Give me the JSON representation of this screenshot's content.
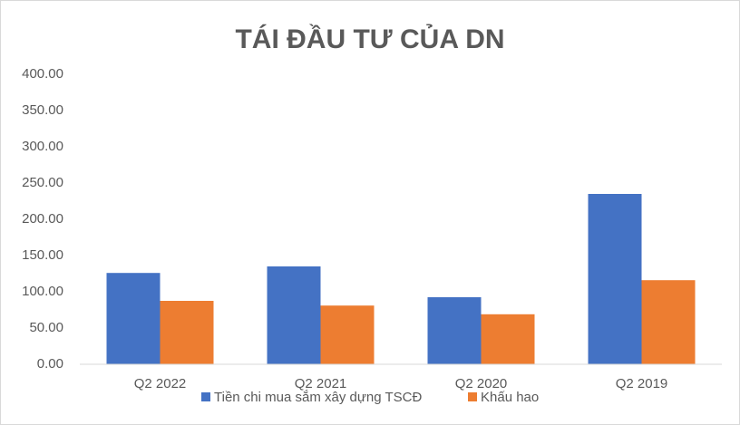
{
  "chart_data": {
    "type": "bar",
    "title": "TÁI ĐẦU TƯ CỦA DN",
    "categories": [
      "Q2 2022",
      "Q2 2021",
      "Q2 2020",
      "Q2 2019"
    ],
    "series": [
      {
        "name": "Tiền chi mua sắm xây dựng TSCĐ",
        "color": "#4472c4",
        "values": [
          126,
          135,
          92.5,
          235
        ]
      },
      {
        "name": "Khấu hao",
        "color": "#ed7d31",
        "values": [
          87.5,
          81,
          69,
          116
        ]
      }
    ],
    "ylim": [
      0,
      400
    ],
    "yticks": [
      {
        "value": 0,
        "label": "0.00"
      },
      {
        "value": 50,
        "label": "50.00"
      },
      {
        "value": 100,
        "label": "100.00"
      },
      {
        "value": 150,
        "label": "150.00"
      },
      {
        "value": 200,
        "label": "200.00"
      },
      {
        "value": 250,
        "label": "250.00"
      },
      {
        "value": 300,
        "label": "300.00"
      },
      {
        "value": 350,
        "label": "350.00"
      },
      {
        "value": 400,
        "label": "400.00"
      }
    ],
    "grid": false,
    "legend": "bottom"
  }
}
